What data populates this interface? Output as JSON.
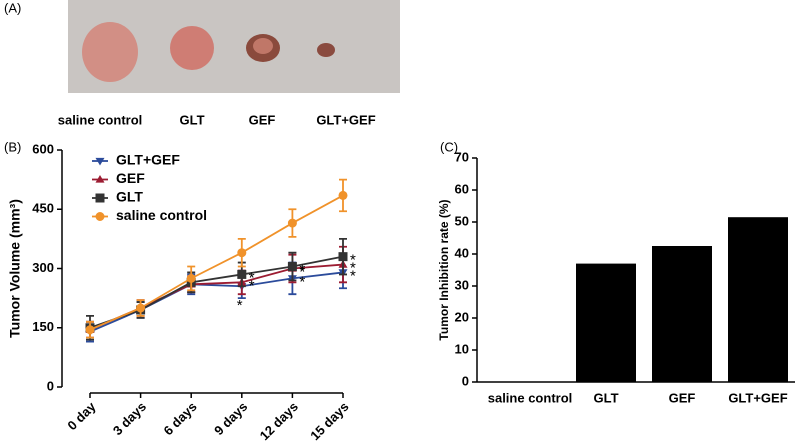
{
  "photo_panel": {
    "panel_label": "(A)",
    "labels": [
      "saline control",
      "GLT",
      "GEF",
      "GLT+GEF"
    ]
  },
  "chart_data": [
    {
      "type": "line",
      "panel_label": "(B)",
      "y_label": "Tumor Volume (mm³)",
      "categories": [
        "0 day",
        "3 days",
        "6 days",
        "9 days",
        "12 days",
        "15 days"
      ],
      "ylim": [
        0,
        600
      ],
      "yticks": [
        0,
        150,
        300,
        450,
        600
      ],
      "series": [
        {
          "name": "GLT+GEF",
          "color": "#2b4b9b",
          "marker": "triangle-down",
          "values": [
            140,
            195,
            260,
            255,
            275,
            290
          ],
          "errors": [
            25,
            20,
            25,
            30,
            40,
            40
          ],
          "significance": [
            null,
            null,
            null,
            "*",
            "*",
            "*"
          ]
        },
        {
          "name": "GEF",
          "color": "#9c1c32",
          "marker": "triangle-up",
          "values": [
            145,
            200,
            260,
            265,
            300,
            310
          ],
          "errors": [
            20,
            20,
            20,
            30,
            35,
            45
          ],
          "significance": [
            null,
            null,
            null,
            "*",
            "*",
            "*"
          ]
        },
        {
          "name": "GLT",
          "color": "#333333",
          "marker": "square",
          "values": [
            150,
            195,
            265,
            285,
            305,
            330
          ],
          "errors": [
            30,
            20,
            25,
            30,
            35,
            45
          ],
          "significance": [
            null,
            null,
            null,
            "*",
            "*",
            "*"
          ]
        },
        {
          "name": "saline control",
          "color": "#f0922a",
          "marker": "circle",
          "values": [
            145,
            200,
            275,
            340,
            415,
            485
          ],
          "errors": [
            20,
            20,
            30,
            35,
            35,
            40
          ]
        }
      ]
    },
    {
      "type": "bar",
      "panel_label": "(C)",
      "y_label": "Tumor Inhibition rate (%)",
      "categories": [
        "saline control",
        "GLT",
        "GEF",
        "GLT+GEF"
      ],
      "values": [
        0,
        37,
        42.5,
        51.5
      ],
      "color": "#000000",
      "ylim": [
        0,
        70
      ],
      "yticks": [
        0,
        10,
        20,
        30,
        40,
        50,
        60,
        70
      ]
    }
  ]
}
